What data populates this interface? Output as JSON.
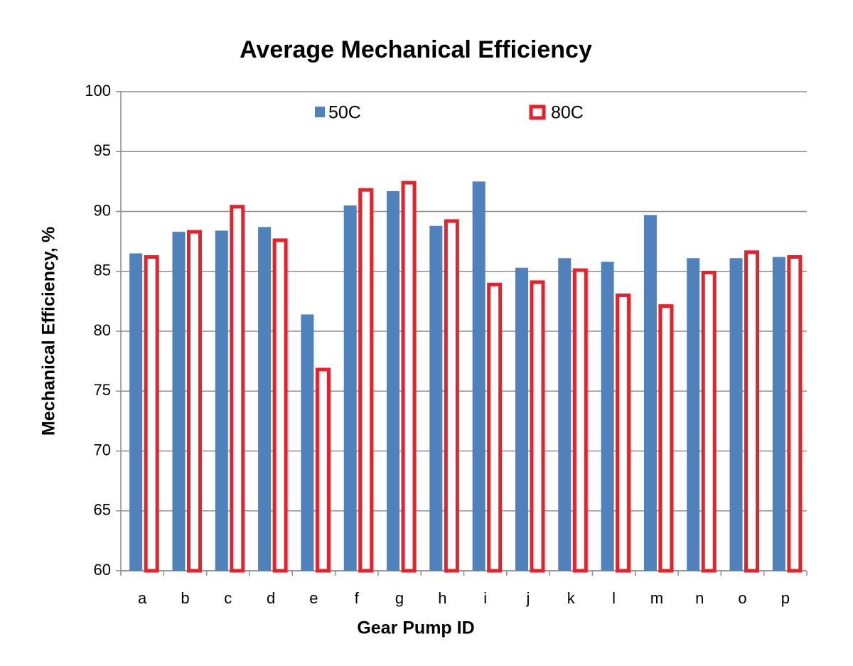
{
  "chart_data": {
    "type": "bar",
    "title": "Average Mechanical Efficiency",
    "x_label": "Gear Pump ID",
    "y_label": "Mechanical  Efficiency, %",
    "categories": [
      "a",
      "b",
      "c",
      "d",
      "e",
      "f",
      "g",
      "h",
      "i",
      "j",
      "k",
      "l",
      "m",
      "n",
      "o",
      "p"
    ],
    "series": [
      {
        "name": "50C",
        "color": "#4f81bd",
        "fill": "#4f81bd",
        "values": [
          86.5,
          88.3,
          88.4,
          88.7,
          81.4,
          90.5,
          91.7,
          88.8,
          92.5,
          85.3,
          86.1,
          85.8,
          89.7,
          86.1,
          86.1,
          86.2
        ]
      },
      {
        "name": "80C",
        "color": "#e8202a",
        "fill": "#ffffff",
        "values": [
          86.2,
          88.3,
          90.4,
          87.6,
          76.8,
          91.8,
          92.4,
          89.2,
          83.9,
          84.1,
          85.1,
          83.0,
          82.1,
          84.9,
          86.6,
          86.2
        ]
      }
    ],
    "ylim": [
      60,
      100
    ],
    "yticks": [
      60,
      65,
      70,
      75,
      80,
      85,
      90,
      95,
      100
    ],
    "grid": true
  }
}
